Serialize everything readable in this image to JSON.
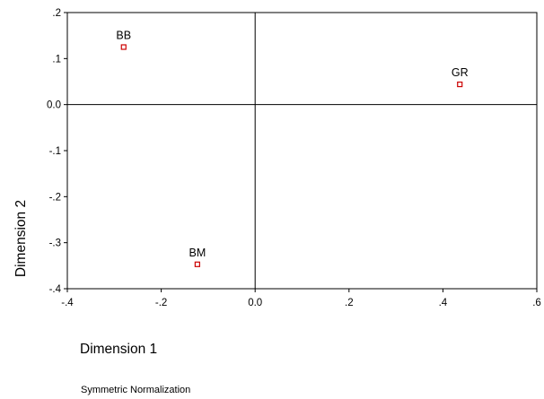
{
  "chart_data": {
    "type": "scatter",
    "xlabel": "Dimension 1",
    "ylabel": "Dimension 2",
    "xlim": [
      -0.4,
      0.6
    ],
    "ylim": [
      -0.4,
      0.2
    ],
    "x_ticks": [
      {
        "value": -0.4,
        "label": "-.4"
      },
      {
        "value": -0.2,
        "label": "-.2"
      },
      {
        "value": 0.0,
        "label": "0.0"
      },
      {
        "value": 0.2,
        "label": ".2"
      },
      {
        "value": 0.4,
        "label": ".4"
      },
      {
        "value": 0.6,
        "label": ".6"
      }
    ],
    "y_ticks": [
      {
        "value": 0.2,
        "label": ".2"
      },
      {
        "value": 0.1,
        "label": ".1"
      },
      {
        "value": 0.0,
        "label": "0.0"
      },
      {
        "value": -0.1,
        "label": "-.1"
      },
      {
        "value": -0.2,
        "label": "-.2"
      },
      {
        "value": -0.3,
        "label": "-.3"
      },
      {
        "value": -0.4,
        "label": "-.4"
      }
    ],
    "points": [
      {
        "label": "BB",
        "x": -0.28,
        "y": 0.125
      },
      {
        "label": "GR",
        "x": 0.436,
        "y": 0.044
      },
      {
        "label": "BM",
        "x": -0.123,
        "y": -0.347
      }
    ],
    "reference_lines": {
      "x": 0,
      "y": 0
    },
    "grid": false,
    "legend": "none",
    "footnote": "Symmetric Normalization",
    "colors": {
      "marker": "#cc0000",
      "axis": "#000000",
      "text": "#000000"
    }
  }
}
